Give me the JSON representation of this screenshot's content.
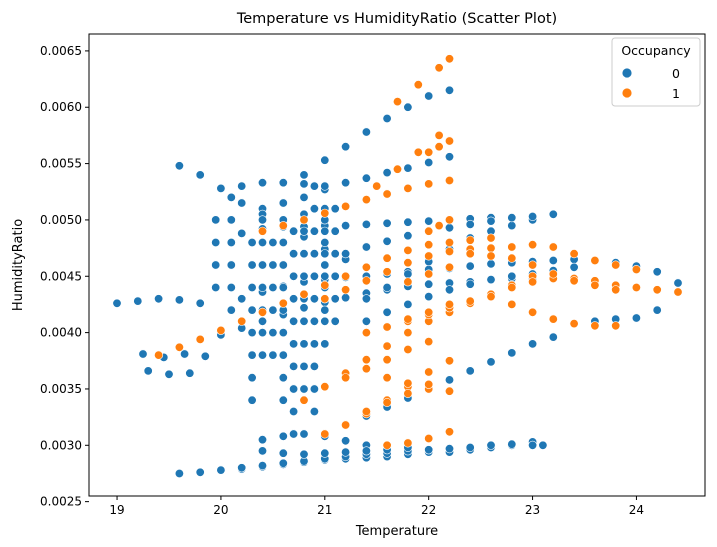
{
  "chart_data": {
    "type": "scatter",
    "title": "Temperature vs HumidityRatio (Scatter Plot)",
    "xlabel": "Temperature",
    "ylabel": "HumidityRatio",
    "xlim": [
      18.73,
      24.66
    ],
    "ylim": [
      0.00255,
      0.00665
    ],
    "x_ticks": [
      19,
      20,
      21,
      22,
      23,
      24
    ],
    "y_ticks": [
      0.0025,
      0.003,
      0.0035,
      0.004,
      0.0045,
      0.005,
      0.0055,
      0.006,
      0.0065
    ],
    "x_tick_labels": [
      "19",
      "20",
      "21",
      "22",
      "23",
      "24"
    ],
    "y_tick_labels": [
      "0.0025",
      "0.0030",
      "0.0035",
      "0.0040",
      "0.0045",
      "0.0050",
      "0.0055",
      "0.0060",
      "0.0065"
    ],
    "grid": false,
    "legend": {
      "title": "Occupancy",
      "placement": "top-right",
      "entries": [
        {
          "label": "0",
          "color": "#1f77b4"
        },
        {
          "label": "1",
          "color": "#ff7f0e"
        }
      ]
    },
    "series": [
      {
        "name": "0",
        "color": "#1f77b4",
        "x": [
          19.0,
          19.2,
          19.4,
          19.6,
          19.8,
          19.25,
          19.45,
          19.65,
          19.85,
          19.3,
          19.5,
          19.7,
          19.6,
          19.8,
          20.0,
          20.2,
          20.4,
          20.6,
          20.8,
          21.0,
          21.2,
          21.4,
          21.6,
          21.8,
          22.0,
          22.2,
          22.4,
          22.6,
          22.8,
          23.0,
          23.1,
          19.8,
          20.0,
          20.2,
          20.4,
          20.6,
          20.8,
          21.0,
          21.2,
          21.4,
          21.6,
          21.8,
          22.0,
          22.2,
          22.4,
          22.6,
          22.8,
          23.0,
          20.2,
          20.4,
          20.6,
          20.8,
          21.0,
          21.2,
          21.4,
          21.6,
          21.8,
          22.0,
          22.2,
          22.4,
          22.6,
          22.8,
          23.0,
          23.2,
          23.4,
          23.6,
          23.8,
          24.0,
          24.2,
          24.4,
          23.6,
          23.8,
          24.0,
          24.2,
          20.0,
          20.2,
          20.4,
          20.6,
          20.8,
          21.0,
          21.2,
          21.4,
          21.6,
          21.8,
          22.0,
          22.2,
          22.4,
          22.6,
          22.8,
          23.0,
          23.2,
          20.8,
          21.0,
          21.2,
          21.4,
          21.6,
          21.8,
          22.0,
          22.2,
          20.4,
          20.6,
          20.8,
          21.0,
          21.2,
          21.4,
          21.6,
          21.8,
          22.0,
          22.2,
          19.6,
          19.8,
          20.0,
          20.2,
          20.4,
          20.6,
          20.8,
          21.0,
          21.2,
          20.2,
          20.4,
          20.6,
          20.8,
          21.0,
          21.2,
          21.4,
          21.6,
          21.8,
          22.0,
          22.2,
          22.4,
          22.6,
          20.0,
          20.2,
          20.4,
          20.6,
          20.8,
          21.0,
          20.6,
          20.6,
          20.6,
          20.6,
          20.6,
          20.6,
          20.6,
          20.6,
          20.6,
          20.8,
          20.8,
          20.8,
          20.8,
          20.8,
          20.8,
          20.8,
          20.8,
          20.8,
          20.8,
          21.0,
          21.0,
          21.0,
          21.0,
          21.0,
          21.0,
          21.0,
          20.4,
          20.4,
          20.4,
          20.4,
          20.4,
          20.4,
          20.4,
          20.1,
          20.1,
          20.1,
          20.1,
          20.1,
          20.1,
          19.95,
          19.95,
          19.95,
          19.95,
          21.4,
          21.6,
          21.8,
          22.0,
          22.2,
          22.4,
          22.6,
          22.8,
          23.0,
          21.2,
          21.4,
          21.6,
          21.8,
          22.0,
          22.2,
          22.4,
          22.6,
          22.8,
          23.0,
          23.2,
          21.4,
          21.6,
          21.8,
          22.0,
          22.2,
          22.4,
          22.6,
          22.8,
          23.0,
          23.2,
          23.4,
          21.0,
          21.2,
          21.4,
          21.6,
          21.8,
          22.0,
          22.2,
          22.4,
          22.6,
          22.8,
          23.0,
          23.2,
          20.4,
          20.6,
          20.8,
          21.0,
          21.2,
          21.4,
          21.6,
          21.8,
          22.0,
          20.4,
          20.6,
          20.8,
          21.0,
          21.2,
          21.4,
          21.6,
          20.7,
          20.7,
          20.7,
          20.7,
          20.7,
          20.7,
          20.7,
          20.7,
          20.7,
          20.7,
          20.5,
          20.5,
          20.5,
          20.5,
          20.5,
          20.5,
          20.9,
          20.9,
          20.9,
          20.9,
          20.9,
          20.9,
          20.9,
          20.9,
          20.9,
          20.9,
          20.9,
          21.0,
          21.0,
          21.0,
          21.0,
          21.0,
          20.3,
          20.3,
          20.3,
          20.3,
          20.3,
          20.3,
          20.3,
          20.3,
          21.1,
          21.1,
          21.1,
          21.1,
          21.1,
          21.1
        ],
        "y": [
          0.00426,
          0.00428,
          0.0043,
          0.00429,
          0.00426,
          0.00381,
          0.00378,
          0.00381,
          0.00379,
          0.00366,
          0.00363,
          0.00364,
          0.00275,
          0.00276,
          0.00278,
          0.00279,
          0.00281,
          0.00283,
          0.00285,
          0.00287,
          0.00288,
          0.00289,
          0.0029,
          0.00292,
          0.00294,
          0.00294,
          0.00296,
          0.00298,
          0.003,
          0.00303,
          0.003,
          0.00276,
          0.00278,
          0.0028,
          0.00282,
          0.00284,
          0.00286,
          0.00288,
          0.0029,
          0.00292,
          0.00293,
          0.00295,
          0.00296,
          0.00297,
          0.00298,
          0.003,
          0.00301,
          0.003,
          0.0043,
          0.00436,
          0.00441,
          0.00445,
          0.00447,
          0.00449,
          0.0045,
          0.00452,
          0.00454,
          0.00456,
          0.00457,
          0.00459,
          0.00461,
          0.00462,
          0.00463,
          0.00464,
          0.00465,
          0.00464,
          0.00462,
          0.00459,
          0.00454,
          0.00444,
          0.0041,
          0.00412,
          0.00413,
          0.0042,
          0.00398,
          0.00404,
          0.0041,
          0.00416,
          0.00422,
          0.00427,
          0.00431,
          0.00435,
          0.00438,
          0.00441,
          0.00443,
          0.00444,
          0.00445,
          0.00447,
          0.00448,
          0.00448,
          0.00448,
          0.0054,
          0.00553,
          0.00565,
          0.00578,
          0.0059,
          0.006,
          0.0061,
          0.00615,
          0.0051,
          0.00515,
          0.0052,
          0.00527,
          0.00533,
          0.00537,
          0.00542,
          0.00546,
          0.00551,
          0.00556,
          0.00548,
          0.0054,
          0.00528,
          0.00515,
          0.00505,
          0.00495,
          0.00485,
          0.00474,
          0.00465,
          0.00488,
          0.00492,
          0.00494,
          0.00494,
          0.00495,
          0.00495,
          0.00496,
          0.00497,
          0.00498,
          0.00499,
          0.005,
          0.00501,
          0.00502,
          0.00528,
          0.0053,
          0.00533,
          0.00533,
          0.00532,
          0.0053,
          0.005,
          0.0048,
          0.0046,
          0.0044,
          0.0042,
          0.004,
          0.0038,
          0.0036,
          0.0034,
          0.0052,
          0.00505,
          0.0049,
          0.0047,
          0.0045,
          0.0043,
          0.0041,
          0.0039,
          0.0037,
          0.0035,
          0.0051,
          0.0049,
          0.0047,
          0.0045,
          0.0043,
          0.0041,
          0.0039,
          0.005,
          0.0048,
          0.0046,
          0.0044,
          0.0042,
          0.004,
          0.0038,
          0.0052,
          0.005,
          0.0048,
          0.0046,
          0.0044,
          0.0042,
          0.005,
          0.0048,
          0.0046,
          0.0044,
          0.0043,
          0.0044,
          0.00452,
          0.00463,
          0.00474,
          0.00484,
          0.0049,
          0.00495,
          0.005,
          0.0047,
          0.00476,
          0.00481,
          0.00486,
          0.0049,
          0.00493,
          0.00496,
          0.00499,
          0.00502,
          0.00503,
          0.00505,
          0.0041,
          0.00418,
          0.00425,
          0.00432,
          0.00438,
          0.00443,
          0.00447,
          0.0045,
          0.00452,
          0.00455,
          0.00458,
          0.0031,
          0.00318,
          0.00326,
          0.00334,
          0.00342,
          0.0035,
          0.00358,
          0.00366,
          0.00374,
          0.00382,
          0.0039,
          0.00396,
          0.00305,
          0.00308,
          0.0031,
          0.00308,
          0.00304,
          0.003,
          0.003,
          0.00298,
          0.00296,
          0.00295,
          0.00293,
          0.00292,
          0.00293,
          0.00294,
          0.00295,
          0.00296,
          0.0049,
          0.0047,
          0.0045,
          0.0043,
          0.0041,
          0.0039,
          0.0037,
          0.0035,
          0.0033,
          0.0031,
          0.0048,
          0.0046,
          0.0044,
          0.0042,
          0.004,
          0.0038,
          0.0053,
          0.0051,
          0.0049,
          0.0047,
          0.0045,
          0.0043,
          0.0041,
          0.0039,
          0.0037,
          0.0035,
          0.0033,
          0.005,
          0.0048,
          0.0046,
          0.0044,
          0.0042,
          0.0048,
          0.0046,
          0.0044,
          0.0042,
          0.004,
          0.0038,
          0.0036,
          0.0034,
          0.0051,
          0.0049,
          0.0047,
          0.0045,
          0.0043,
          0.0041
        ]
      },
      {
        "name": "1",
        "color": "#ff7f0e",
        "x": [
          19.4,
          19.6,
          19.8,
          20.0,
          20.2,
          20.4,
          20.6,
          20.8,
          21.0,
          21.2,
          21.4,
          21.6,
          21.8,
          22.0,
          22.2,
          22.4,
          22.6,
          20.4,
          20.6,
          20.8,
          21.0,
          21.2,
          21.4,
          21.6,
          21.8,
          22.0,
          22.2,
          20.8,
          21.0,
          21.2,
          21.4,
          21.6,
          21.8,
          22.0,
          22.2,
          22.4,
          22.6,
          22.8,
          23.0,
          21.0,
          21.2,
          21.4,
          21.6,
          21.8,
          22.0,
          22.2,
          22.4,
          22.6,
          22.8,
          23.0,
          23.2,
          23.4,
          23.6,
          23.8,
          24.0,
          21.8,
          22.0,
          22.2,
          22.4,
          22.6,
          22.8,
          23.0,
          23.2,
          23.4,
          23.6,
          23.8,
          24.0,
          24.2,
          24.4,
          22.6,
          22.8,
          23.0,
          23.2,
          23.4,
          23.6,
          23.8,
          22.4,
          22.6,
          22.8,
          23.0,
          23.2,
          23.4,
          23.6,
          23.8,
          21.0,
          21.2,
          21.4,
          21.6,
          21.8,
          22.0,
          22.2,
          21.6,
          21.8,
          22.0,
          22.2,
          21.6,
          21.8,
          22.0,
          22.2,
          21.7,
          21.9,
          22.1,
          22.2,
          22.0,
          22.1,
          22.2,
          22.0,
          22.1,
          22.2,
          21.5,
          21.7,
          21.9,
          22.1,
          21.8,
          22.0,
          22.2,
          21.4,
          21.6,
          21.8,
          22.0,
          22.2,
          21.2,
          21.4,
          21.6,
          21.8,
          22.0,
          21.4,
          21.6,
          21.8,
          22.0
        ],
        "y": [
          0.0038,
          0.00387,
          0.00394,
          0.00402,
          0.0041,
          0.00418,
          0.00426,
          0.00434,
          0.00442,
          0.0045,
          0.00458,
          0.00466,
          0.00473,
          0.00478,
          0.0048,
          0.00482,
          0.00484,
          0.0049,
          0.00495,
          0.005,
          0.00506,
          0.00512,
          0.00518,
          0.00523,
          0.00528,
          0.00532,
          0.00535,
          0.0034,
          0.00352,
          0.00364,
          0.00376,
          0.00388,
          0.004,
          0.0041,
          0.00418,
          0.00426,
          0.00434,
          0.00442,
          0.0045,
          0.0043,
          0.00438,
          0.00446,
          0.00454,
          0.00462,
          0.00468,
          0.00472,
          0.00474,
          0.00475,
          0.00476,
          0.00478,
          0.00476,
          0.0047,
          0.00464,
          0.0046,
          0.00456,
          0.0041,
          0.00416,
          0.00422,
          0.00428,
          0.00434,
          0.0044,
          0.00445,
          0.00448,
          0.00448,
          0.00446,
          0.00442,
          0.0044,
          0.00438,
          0.00436,
          0.00432,
          0.00425,
          0.00418,
          0.00412,
          0.00408,
          0.00406,
          0.00406,
          0.0047,
          0.00468,
          0.00466,
          0.0046,
          0.00452,
          0.00446,
          0.00442,
          0.00438,
          0.0031,
          0.00318,
          0.00328,
          0.0034,
          0.00352,
          0.00365,
          0.00375,
          0.003,
          0.00302,
          0.00306,
          0.00312,
          0.0036,
          0.00355,
          0.0035,
          0.00348,
          0.00605,
          0.0062,
          0.00635,
          0.00643,
          0.0056,
          0.00565,
          0.0057,
          0.0049,
          0.00495,
          0.005,
          0.0053,
          0.00545,
          0.0056,
          0.00575,
          0.00445,
          0.00452,
          0.00458,
          0.004,
          0.00405,
          0.00412,
          0.00418,
          0.00425,
          0.0036,
          0.00368,
          0.00376,
          0.00385,
          0.00392,
          0.0033,
          0.00338,
          0.00346,
          0.00354
        ]
      }
    ]
  }
}
